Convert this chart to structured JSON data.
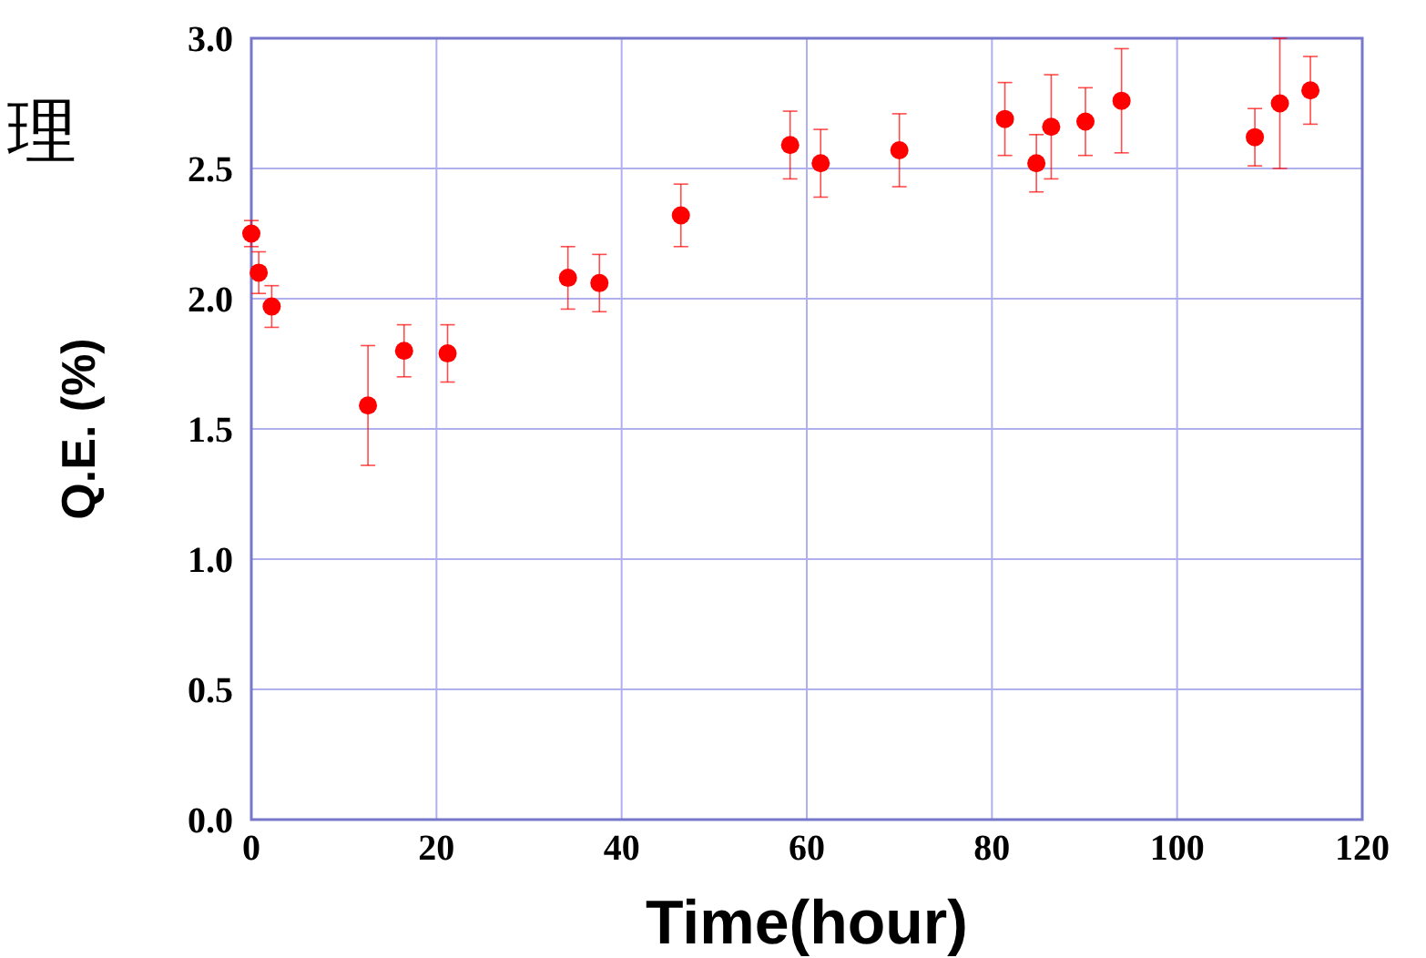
{
  "chart_data": {
    "type": "scatter",
    "xlabel": "Time(hour)",
    "ylabel": "Q.E. (%)",
    "annotations": [
      "理"
    ],
    "x": [
      0,
      0.8,
      2.2,
      12.6,
      16.5,
      21.2,
      34.2,
      37.6,
      46.4,
      58.2,
      61.5,
      70,
      81.4,
      84.8,
      86.4,
      90.1,
      94,
      108.4,
      111.1,
      114.4
    ],
    "series": [
      {
        "color": "#ff0000",
        "values": [
          2.25,
          2.1,
          1.97,
          1.59,
          1.8,
          1.79,
          2.08,
          2.06,
          2.32,
          2.59,
          2.52,
          2.57,
          2.69,
          2.52,
          2.66,
          2.68,
          2.76,
          2.62,
          2.75,
          2.8
        ],
        "errors": [
          0.05,
          0.08,
          0.08,
          0.23,
          0.1,
          0.11,
          0.12,
          0.11,
          0.12,
          0.13,
          0.13,
          0.14,
          0.14,
          0.11,
          0.2,
          0.13,
          0.2,
          0.11,
          0.25,
          0.13
        ]
      }
    ],
    "xlim": [
      0,
      120
    ],
    "xticks": [
      0,
      20,
      40,
      60,
      80,
      100,
      120
    ],
    "ylim": [
      0,
      3
    ],
    "yticks": [
      {
        "value": 0,
        "label": "0.0"
      },
      {
        "value": 0.5,
        "label": "0.5"
      },
      {
        "value": 1,
        "label": "1.0"
      },
      {
        "value": 1.5,
        "label": "1.5"
      },
      {
        "value": 2,
        "label": "2.0"
      },
      {
        "value": 2.5,
        "label": "2.5"
      },
      {
        "value": 3,
        "label": "3.0"
      }
    ],
    "grid": true,
    "marker": "circle"
  }
}
